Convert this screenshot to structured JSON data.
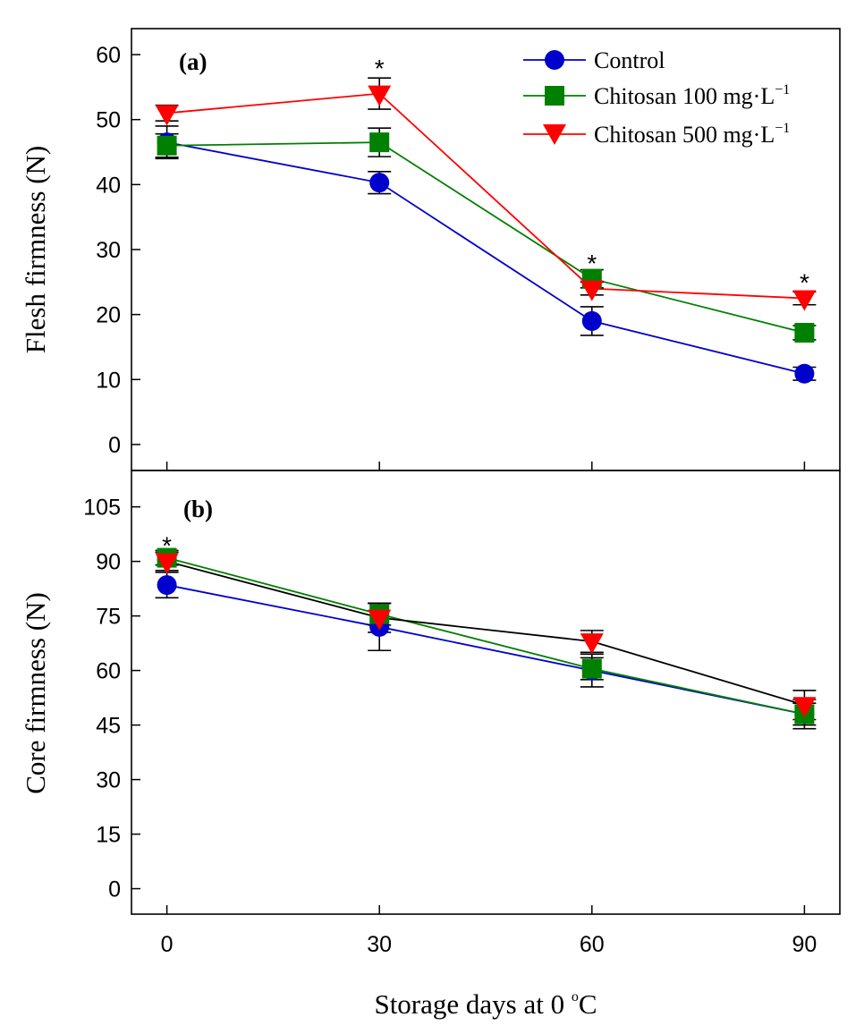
{
  "chart_data": [
    {
      "panel": "a",
      "type": "line",
      "panel_label": "(a)",
      "ylabel": "Flesh firmness (N)",
      "xlabel": "",
      "x": [
        0,
        30,
        60,
        90
      ],
      "xlim": [
        -5,
        95
      ],
      "ylim": [
        -4,
        64
      ],
      "yticks": [
        0,
        10,
        20,
        30,
        40,
        50,
        60
      ],
      "series": [
        {
          "name": "Control",
          "color": "#0000cc",
          "marker": "circle",
          "values": [
            46.5,
            40.3,
            19.0,
            10.9
          ],
          "errors": [
            2.5,
            1.7,
            2.2,
            1.0
          ]
        },
        {
          "name": "Chitosan 100 mg·L−1",
          "color": "#008000",
          "marker": "square",
          "values": [
            46.0,
            46.5,
            25.5,
            17.2
          ],
          "errors": [
            1.8,
            2.2,
            1.4,
            1.1
          ]
        },
        {
          "name": "Chitosan 500 mg·L−1",
          "color": "#ff0000",
          "marker": "triangle-down",
          "values": [
            51.0,
            54.0,
            24.0,
            22.5
          ],
          "errors": [
            1.2,
            2.4,
            1.0,
            1.0
          ]
        }
      ],
      "significance": [
        {
          "x": 30,
          "y": 58.5,
          "text": "*"
        },
        {
          "x": 60,
          "y": 28.5,
          "text": "*"
        },
        {
          "x": 90,
          "y": 25.5,
          "text": "*"
        }
      ],
      "legend": {
        "placement": "top-right",
        "entries": [
          {
            "main": "Control",
            "sup": ""
          },
          {
            "main": "Chitosan 100 mg·L",
            "sup": "−1"
          },
          {
            "main": "Chitosan 500 mg·L",
            "sup": "−1"
          }
        ]
      }
    },
    {
      "panel": "b",
      "type": "line",
      "panel_label": "(b)",
      "ylabel": "Core firmness (N)",
      "xlabel": "Storage days at 0 °C",
      "x": [
        0,
        30,
        60,
        90
      ],
      "xlim": [
        -5,
        95
      ],
      "ylim": [
        -7,
        115
      ],
      "yticks": [
        0,
        15,
        30,
        45,
        60,
        75,
        90,
        105
      ],
      "xticks": [
        0,
        30,
        60,
        90
      ],
      "series": [
        {
          "name": "Control",
          "color": "#0000cc",
          "line_color": "#0000cc",
          "marker": "circle",
          "values": [
            83.5,
            72.0,
            60.0,
            48.0
          ],
          "errors": [
            3.5,
            6.5,
            4.5,
            4.0
          ]
        },
        {
          "name": "Chitosan 100 mg·L−1",
          "color": "#008000",
          "line_color": "#008000",
          "marker": "square",
          "values": [
            91.0,
            75.5,
            60.5,
            48.0
          ],
          "errors": [
            2.0,
            3.0,
            3.0,
            3.0
          ]
        },
        {
          "name": "Chitosan 500 mg·L−1",
          "color": "#ff0000",
          "line_color": "#000000",
          "marker": "triangle-down",
          "values": [
            90.0,
            74.5,
            68.0,
            50.5
          ],
          "errors": [
            2.5,
            4.0,
            3.0,
            4.0
          ]
        }
      ],
      "significance": [
        {
          "x": 0,
          "y": 95.5,
          "text": "*"
        }
      ]
    }
  ],
  "xlabel_parts": {
    "main": "Storage days at 0 ",
    "sup": "o",
    "unit": "C"
  }
}
